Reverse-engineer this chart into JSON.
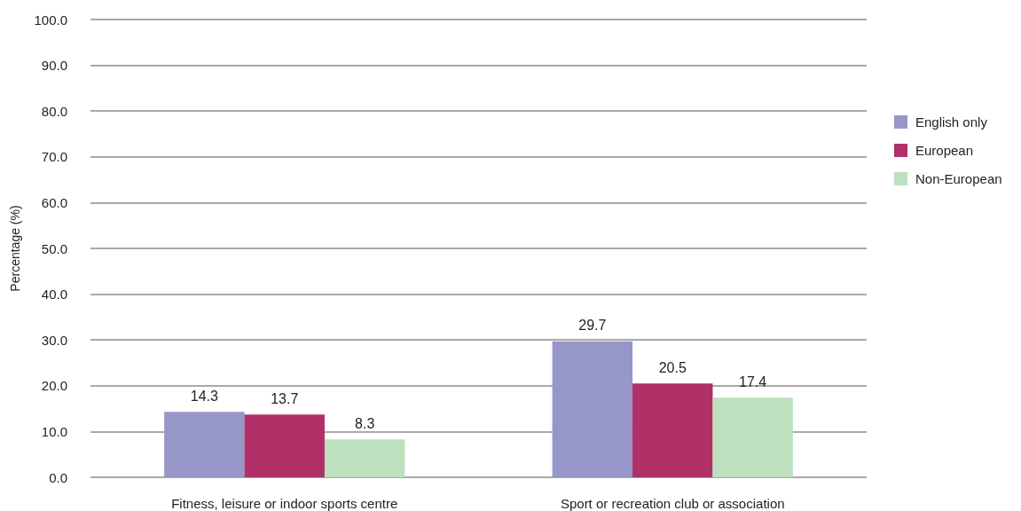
{
  "chart_data": {
    "type": "bar",
    "ylabel": "Percentage (%)",
    "categories": [
      "Fitness, leisure or indoor sports centre",
      "Sport or recreation club or association"
    ],
    "series": [
      {
        "name": "English only",
        "color": "#9696c8",
        "values": [
          14.3,
          29.7
        ]
      },
      {
        "name": "European",
        "color": "#b03068",
        "values": [
          13.7,
          20.5
        ]
      },
      {
        "name": "Non-European",
        "color": "#bde0be",
        "values": [
          8.3,
          17.4
        ]
      }
    ],
    "ylim": [
      0,
      100
    ],
    "yticks": [
      {
        "value": 0,
        "label": "0.0"
      },
      {
        "value": 10,
        "label": "10.0"
      },
      {
        "value": 20,
        "label": "20.0"
      },
      {
        "value": 30,
        "label": "30.0"
      },
      {
        "value": 40,
        "label": "40.0"
      },
      {
        "value": 50,
        "label": "50.0"
      },
      {
        "value": 60,
        "label": "60.0"
      },
      {
        "value": 70,
        "label": "70.0"
      },
      {
        "value": 80,
        "label": "80.0"
      },
      {
        "value": 90,
        "label": "90.0"
      },
      {
        "value": 100,
        "label": "100.0"
      }
    ],
    "grid": "y",
    "legend": "right",
    "data_labels": true
  }
}
